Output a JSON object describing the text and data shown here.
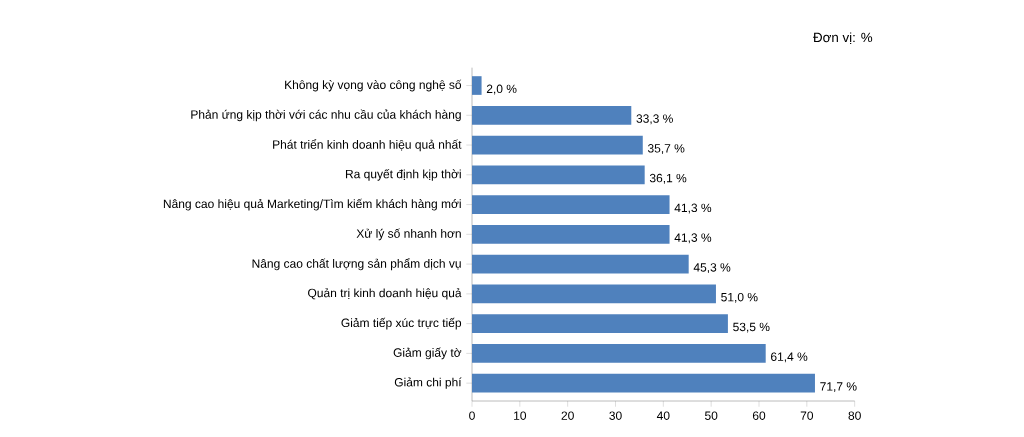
{
  "chart_data": {
    "type": "bar",
    "orientation": "horizontal",
    "annotations": [
      "Đơn vị: %"
    ],
    "categories": [
      "Không kỳ vọng vào công nghệ số",
      "Phản ứng kịp thời với các nhu cầu của khách hàng",
      "Phát triển kinh doanh hiệu quả nhất",
      "Ra quyết định kịp thời",
      "Nâng cao hiệu quả Marketing/Tìm kiếm khách hàng mới",
      "Xử lý số nhanh hơn",
      "Nâng cao chất lượng sản phẩm dịch vụ",
      "Quản trị kinh doanh hiệu quả",
      "Giảm tiếp xúc trực tiếp",
      "Giảm giấy tờ",
      "Giảm chi phí"
    ],
    "values": [
      2.0,
      33.3,
      35.7,
      36.1,
      41.3,
      41.3,
      45.3,
      51.0,
      53.5,
      61.4,
      71.7
    ],
    "value_labels": [
      "2,0 %",
      "33,3 %",
      "35,7 %",
      "36,1 %",
      "41,3 %",
      "41,3 %",
      "45,3 %",
      "51,0 %",
      "53,5 %",
      "61,4 %",
      "71,7 %"
    ],
    "color": "#4f81bd",
    "xlim": [
      0,
      80
    ],
    "xticks": [
      0,
      10,
      20,
      30,
      40,
      50,
      60,
      70,
      80
    ],
    "grid": false
  }
}
